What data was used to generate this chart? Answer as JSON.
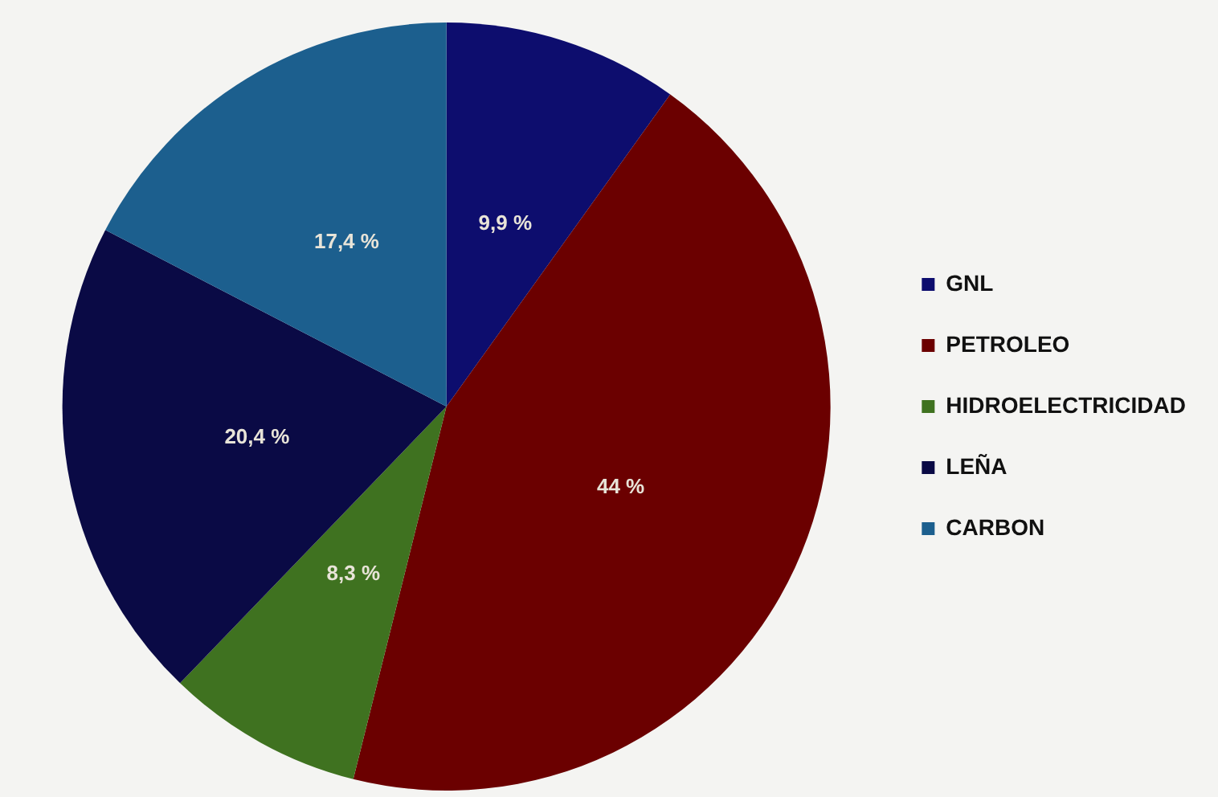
{
  "chart_data": {
    "type": "pie",
    "categories": [
      "GNL",
      "PETROLEO",
      "HIDROELECTRICIDAD",
      "LEÑA",
      "CARBON"
    ],
    "values": [
      9.9,
      44,
      8.3,
      20.4,
      17.4
    ],
    "value_labels": [
      "9,9 %",
      "44 %",
      "8,3 %",
      "20,4 %",
      "17,4 %"
    ],
    "colors": [
      "#0d0d6e",
      "#6b0000",
      "#3f7220",
      "#0a0a45",
      "#1c5f8e"
    ],
    "legend": "right"
  }
}
